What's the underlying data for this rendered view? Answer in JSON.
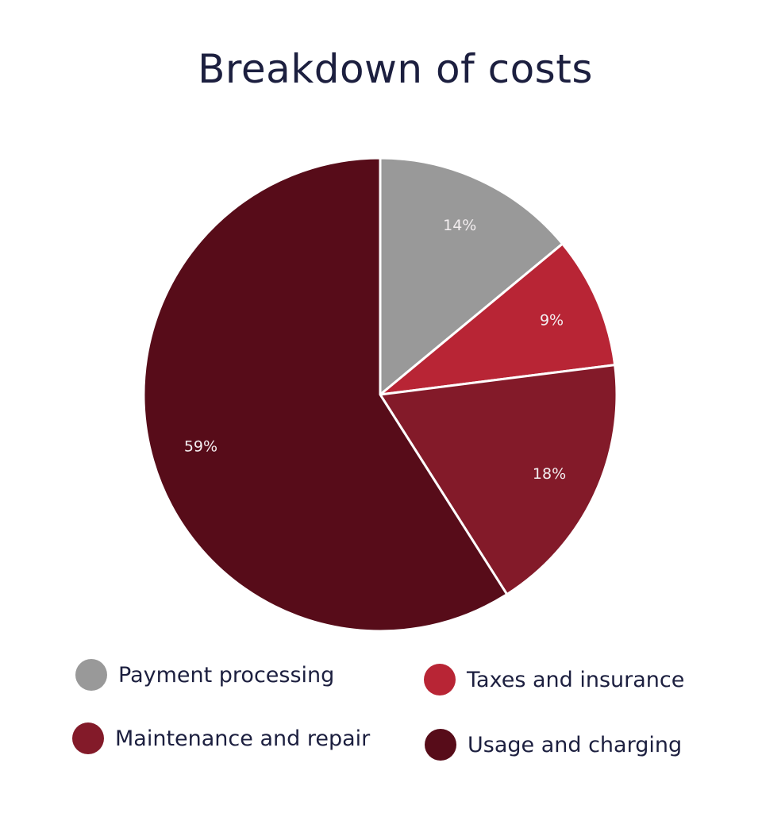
{
  "chart_data": {
    "type": "pie",
    "title": "Breakdown of costs",
    "slices": [
      {
        "label": "Payment processing",
        "value": 14,
        "display": "14%",
        "color": "#999999"
      },
      {
        "label": "Taxes and insurance",
        "value": 9,
        "display": "9%",
        "color": "#b82535"
      },
      {
        "label": "Maintenance and repair",
        "value": 18,
        "display": "18%",
        "color": "#831a29"
      },
      {
        "label": "Usage and charging",
        "value": 59,
        "display": "59%",
        "color": "#570c19"
      }
    ],
    "start_angle_deg": 0,
    "direction": "clockwise",
    "legend_position": "bottom"
  }
}
